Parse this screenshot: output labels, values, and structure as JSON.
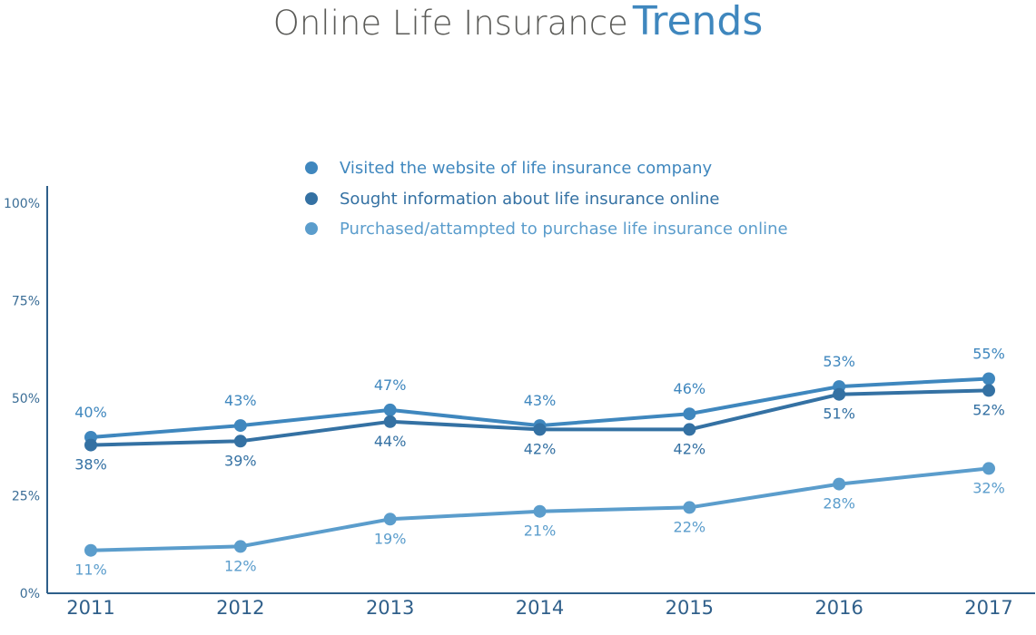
{
  "title": {
    "part1": "Online Life Insurance",
    "part2": "Trends"
  },
  "chart_data": {
    "type": "line",
    "x": [
      "2011",
      "2012",
      "2013",
      "2014",
      "2015",
      "2016",
      "2017"
    ],
    "ylim": [
      0,
      100
    ],
    "y_ticks": [
      0,
      25,
      50,
      75,
      100
    ],
    "y_tick_labels": [
      "0%",
      "25%",
      "50%",
      "75%",
      "100%"
    ],
    "legend_position": "top-center",
    "grid": false,
    "series": [
      {
        "name": "Visited the website of life insurance company",
        "color": "#3f87be",
        "values": [
          40,
          43,
          47,
          43,
          46,
          53,
          55
        ],
        "labels": [
          "40%",
          "43%",
          "47%",
          "43%",
          "46%",
          "53%",
          "55%"
        ],
        "label_side": [
          "above",
          "above",
          "above",
          "above",
          "above",
          "above",
          "above"
        ]
      },
      {
        "name": "Sought information about life insurance online",
        "color": "#3471a3",
        "values": [
          38,
          39,
          44,
          42,
          42,
          51,
          52
        ],
        "labels": [
          "38%",
          "39%",
          "44%",
          "42%",
          "42%",
          "51%",
          "52%"
        ],
        "label_side": [
          "below",
          "below",
          "below",
          "below",
          "below",
          "below",
          "below"
        ]
      },
      {
        "name": "Purchased/attampted to purchase life insurance online",
        "color": "#5b9dcc",
        "values": [
          11,
          12,
          19,
          21,
          22,
          28,
          32
        ],
        "labels": [
          "11%",
          "12%",
          "19%",
          "21%",
          "22%",
          "28%",
          "32%"
        ],
        "label_side": [
          "below",
          "below",
          "below",
          "below",
          "below",
          "below",
          "below"
        ]
      }
    ]
  }
}
